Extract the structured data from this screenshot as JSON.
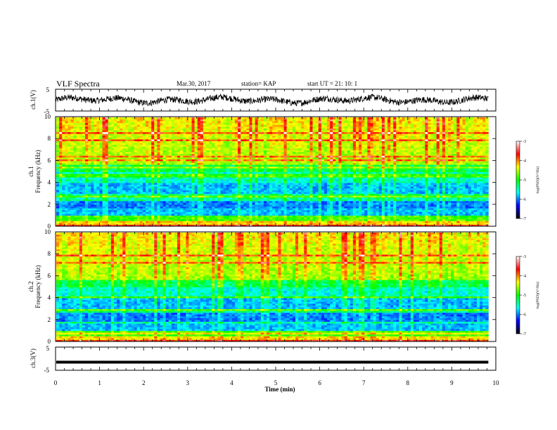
{
  "header": {
    "title": "VLF Spectra",
    "date": "Mar.30, 2017",
    "station": "station= KAP",
    "start": "start  UT =   21: 10: 1"
  },
  "panels": {
    "ch1_waveform": {
      "ylabel": "ch.1(V)",
      "ymax_label": "5",
      "ymin_label": "-5"
    },
    "ch1_spectrogram": {
      "ylabel1": "ch.1",
      "ylabel2": "Frequency (kHz)"
    },
    "ch2_spectrogram": {
      "ylabel1": "ch.2",
      "ylabel2": "Frequency (kHz)"
    },
    "ch3_waveform": {
      "ylabel": "ch.3(V)",
      "ymax_label": "5",
      "ymin_label": "-5"
    }
  },
  "colorbar": {
    "label": "log(PSD)(V²/Hz)",
    "ticks": [
      "-3",
      "-4",
      "-5",
      "-6",
      "-7"
    ],
    "colors": [
      "#ffffff",
      "#ff0000",
      "#ffff00",
      "#00ff00",
      "#00ffff",
      "#0000ff",
      "#000000"
    ]
  },
  "chart_data": [
    {
      "type": "line",
      "name": "ch1-waveform",
      "ylabel": "ch.1(V)",
      "xlim": [
        0,
        10
      ],
      "ylim": [
        -5,
        5
      ],
      "x_span_data": [
        0,
        9.83
      ],
      "approx_level": 0,
      "approx_amplitude": 3
    },
    {
      "type": "heatmap",
      "name": "ch1-spectrogram",
      "ylabel": "Frequency (kHz)",
      "xlim": [
        0,
        10
      ],
      "ylim": [
        0,
        10
      ],
      "yticks": [
        "0",
        "2",
        "4",
        "6",
        "8",
        "10"
      ],
      "color_range_log_psd": [
        -7,
        -3
      ],
      "x_span_data": [
        0,
        9.83
      ]
    },
    {
      "type": "heatmap",
      "name": "ch2-spectrogram",
      "ylabel": "Frequency (kHz)",
      "xlim": [
        0,
        10
      ],
      "ylim": [
        0,
        10
      ],
      "yticks": [
        "0",
        "2",
        "4",
        "6",
        "8",
        "10"
      ],
      "color_range_log_psd": [
        -7,
        -3
      ],
      "x_span_data": [
        0,
        9.83
      ]
    },
    {
      "type": "line",
      "name": "ch3-waveform",
      "ylabel": "ch.3(V)",
      "xlim": [
        0,
        10
      ],
      "ylim": [
        -5,
        5
      ],
      "x_span_data": [
        0,
        9.83
      ],
      "approx_level": -1.5
    }
  ],
  "xaxis": {
    "label": "Time (min)",
    "ticks": [
      "0",
      "1",
      "2",
      "3",
      "4",
      "5",
      "6",
      "7",
      "8",
      "9",
      "10"
    ]
  }
}
